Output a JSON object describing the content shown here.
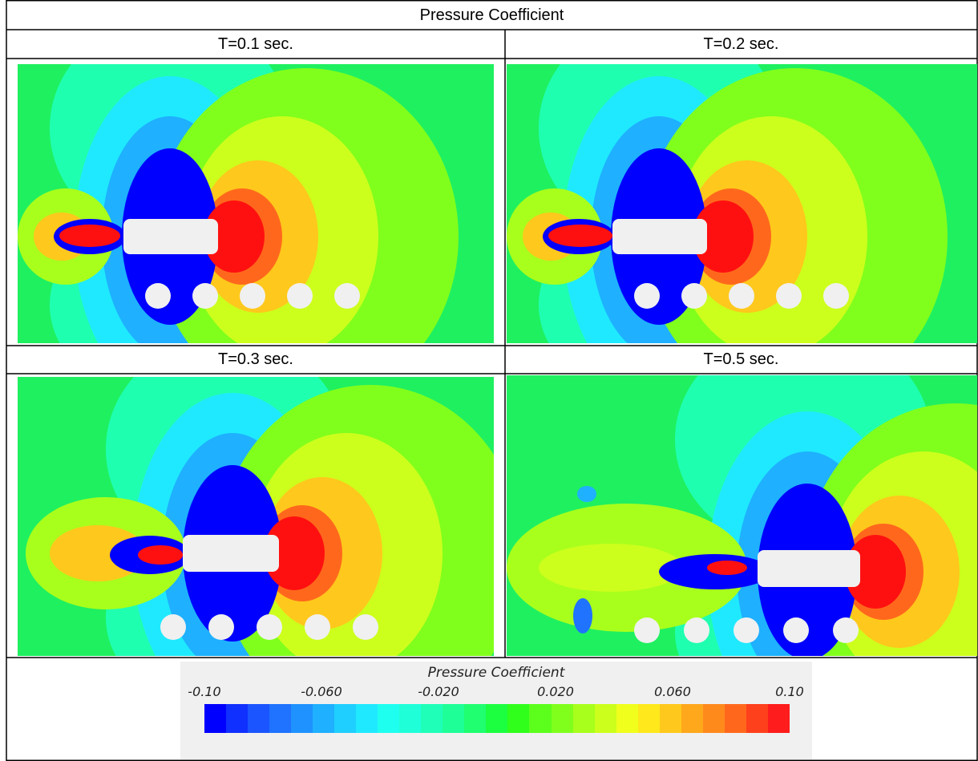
{
  "table": {
    "title": "Pressure Coefficient",
    "panels": [
      {
        "label": "T=0.1 sec.",
        "icon": "pressure-contour-panel-1"
      },
      {
        "label": "T=0.2 sec.",
        "icon": "pressure-contour-panel-2"
      },
      {
        "label": "T=0.3 sec.",
        "icon": "pressure-contour-panel-3"
      },
      {
        "label": "T=0.5 sec.",
        "icon": "pressure-contour-panel-4"
      }
    ]
  },
  "legend": {
    "title": "Pressure Coefficient",
    "ticks": [
      "-0.10",
      "-0.060",
      "-0.020",
      "0.020",
      "0.060",
      "0.10"
    ],
    "range": [
      -0.1,
      0.1
    ],
    "colors": [
      "#0000ff",
      "#1030ff",
      "#1a55ff",
      "#1f73ff",
      "#1f92ff",
      "#1fb0ff",
      "#1fcfff",
      "#1fe9ff",
      "#1ffff0",
      "#1fffd8",
      "#1fffb8",
      "#1fff98",
      "#1fff70",
      "#1cff40",
      "#30ff1c",
      "#5cff1c",
      "#80ff1c",
      "#a8ff1c",
      "#ccff1c",
      "#f0ff1c",
      "#ffe81c",
      "#ffc81c",
      "#ffa81c",
      "#ff8a1c",
      "#ff681c",
      "#ff401c",
      "#ff1c1c"
    ]
  },
  "colors": {
    "far_field": "#20f060",
    "suction": "#0000ff",
    "stagnation": "#ff1010",
    "body": "#f0f0f0"
  }
}
